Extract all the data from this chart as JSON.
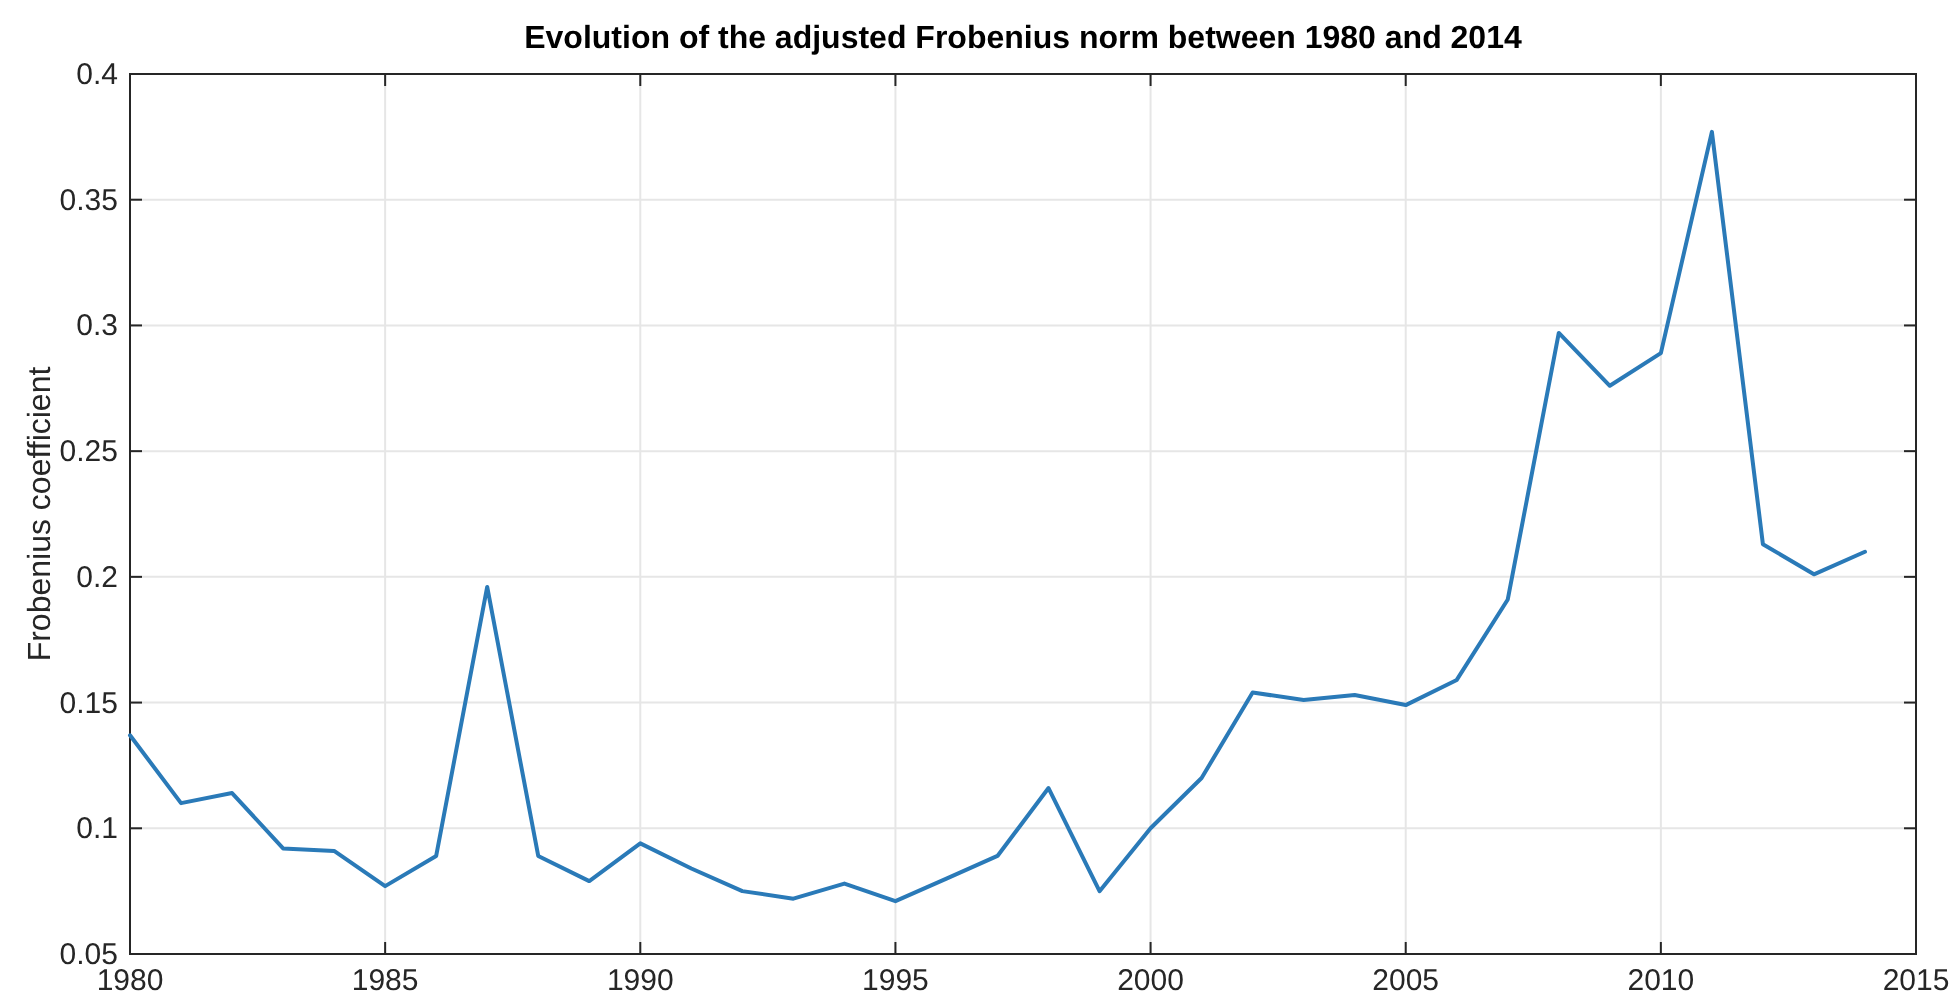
{
  "chart_data": {
    "type": "line",
    "title": "Evolution of the adjusted Frobenius norm between 1980 and 2014",
    "ylabel": "Frobenius coefficient",
    "x": [
      1980,
      1981,
      1982,
      1983,
      1984,
      1985,
      1986,
      1987,
      1988,
      1989,
      1990,
      1991,
      1992,
      1993,
      1994,
      1995,
      1996,
      1997,
      1998,
      1999,
      2000,
      2001,
      2002,
      2003,
      2004,
      2005,
      2006,
      2007,
      2008,
      2009,
      2010,
      2011,
      2012,
      2013,
      2014
    ],
    "series": [
      {
        "color": "#2a7ab8",
        "values": [
          0.137,
          0.11,
          0.114,
          0.092,
          0.091,
          0.077,
          0.089,
          0.196,
          0.089,
          0.079,
          0.094,
          0.084,
          0.075,
          0.072,
          0.078,
          0.071,
          0.08,
          0.089,
          0.116,
          0.075,
          0.1,
          0.12,
          0.154,
          0.151,
          0.153,
          0.149,
          0.159,
          0.191,
          0.297,
          0.276,
          0.289,
          0.377,
          0.213,
          0.201,
          0.21
        ]
      }
    ],
    "xlim": [
      1980,
      2015
    ],
    "xticks": [
      1980,
      1985,
      1990,
      1995,
      2000,
      2005,
      2010,
      2015
    ],
    "ylim": [
      0.05,
      0.4
    ],
    "yticks": [
      0.05,
      0.1,
      0.15,
      0.2,
      0.25,
      0.3,
      0.35,
      0.4
    ],
    "grid": true,
    "marker": "none",
    "line_style": "solid"
  }
}
